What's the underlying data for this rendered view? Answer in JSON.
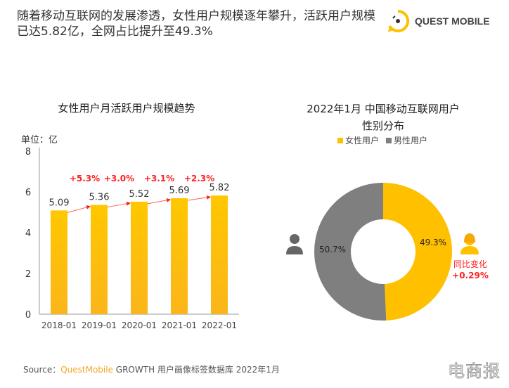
{
  "header": {
    "title": "随着移动互联网的发展渗透，女性用户规模逐年攀升，活跃用户规模已达5.82亿，全网占比提升至49.3%",
    "logo_text": "QUEST MOBILE"
  },
  "colors": {
    "bar": "#FFC000",
    "female": "#FFC000",
    "male": "#7F7F7F",
    "growth": "#FF0000"
  },
  "chart_data": [
    {
      "type": "bar",
      "title": "女性用户月活跃用户规模趋势",
      "ylabel": "单位：亿",
      "categories": [
        "2018-01",
        "2019-01",
        "2020-01",
        "2021-01",
        "2022-01"
      ],
      "values": [
        5.09,
        5.36,
        5.52,
        5.69,
        5.82
      ],
      "value_labels": [
        "5.09",
        "5.36",
        "5.52",
        "5.69",
        "5.82"
      ],
      "growth_labels": [
        "+5.3%",
        "+3.0%",
        "+3.1%",
        "+2.3%"
      ],
      "ylim": [
        0,
        8
      ],
      "yticks": [
        0,
        2,
        4,
        6,
        8
      ]
    },
    {
      "type": "pie",
      "title": "2022年1月 中国移动互联网用户性别分布",
      "legend": [
        "女性用户",
        "男性用户"
      ],
      "values": [
        49.3,
        50.7
      ],
      "value_labels": [
        "49.3%",
        "50.7%"
      ],
      "annotation": {
        "label": "同比变化",
        "value": "+0.29%"
      }
    }
  ],
  "footer": {
    "source_prefix": "Source：",
    "source_brand": "QuestMobile",
    "source_rest": " GROWTH 用户画像标签数据库 2022年1月",
    "watermark": "电商报"
  }
}
